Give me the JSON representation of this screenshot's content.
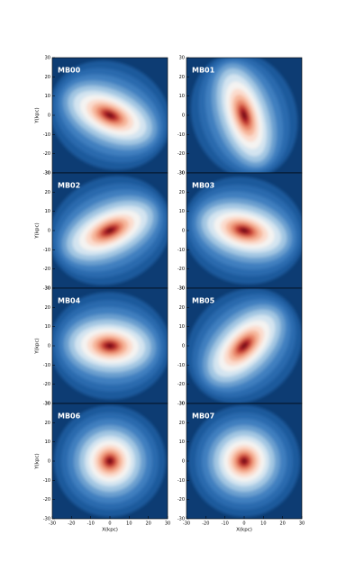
{
  "chart_data": [
    {
      "type": "image",
      "title": "MB00",
      "ylabel": "Y(kpc)",
      "xlim": [
        -30,
        30
      ],
      "ylim": [
        -30,
        30
      ],
      "yticks": [
        -30,
        -20,
        -10,
        0,
        10,
        20,
        30
      ]
    },
    {
      "type": "image",
      "title": "MB01",
      "xlim": [
        -30,
        30
      ],
      "ylim": [
        -30,
        30
      ],
      "yticks": [
        -30,
        -20,
        -10,
        0,
        10,
        20,
        30
      ]
    },
    {
      "type": "image",
      "title": "MB02",
      "ylabel": "Y(kpc)",
      "xlim": [
        -30,
        30
      ],
      "ylim": [
        -30,
        30
      ],
      "yticks": [
        -30,
        -20,
        -10,
        0,
        10,
        20,
        30
      ]
    },
    {
      "type": "image",
      "title": "MB03",
      "xlim": [
        -30,
        30
      ],
      "ylim": [
        -30,
        30
      ],
      "yticks": [
        -30,
        -20,
        -10,
        0,
        10,
        20,
        30
      ]
    },
    {
      "type": "image",
      "title": "MB04",
      "ylabel": "Y(kpc)",
      "xlim": [
        -30,
        30
      ],
      "ylim": [
        -30,
        30
      ],
      "yticks": [
        -30,
        -20,
        -10,
        0,
        10,
        20,
        30
      ]
    },
    {
      "type": "image",
      "title": "MB05",
      "xlim": [
        -30,
        30
      ],
      "ylim": [
        -30,
        30
      ],
      "yticks": [
        -30,
        -20,
        -10,
        0,
        10,
        20,
        30
      ]
    },
    {
      "type": "image",
      "title": "MB06",
      "ylabel": "Y(kpc)",
      "xlabel": "X(kpc)",
      "xlim": [
        -30,
        30
      ],
      "ylim": [
        -30,
        30
      ],
      "xticks": [
        -30,
        -20,
        -10,
        0,
        10,
        20,
        30
      ],
      "yticks": [
        -30,
        -20,
        -10,
        0,
        10,
        20,
        30
      ]
    },
    {
      "type": "image",
      "title": "MB07",
      "xlabel": "X(kpc)",
      "xlim": [
        -30,
        30
      ],
      "ylim": [
        -30,
        30
      ],
      "xticks": [
        -30,
        -20,
        -10,
        0,
        10,
        20,
        30
      ],
      "yticks": [
        -30,
        -20,
        -10,
        0,
        10,
        20,
        30
      ]
    }
  ]
}
